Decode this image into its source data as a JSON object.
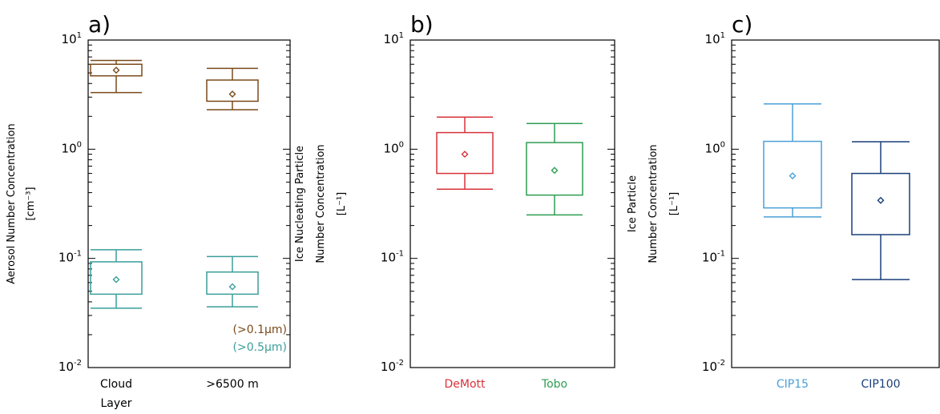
{
  "chart_data": [
    {
      "type": "box",
      "panel_label": "a)",
      "ylabel_lines": [
        "Aerosol Number Concentration",
        "[cm⁻³]"
      ],
      "yscale": "log",
      "ylim": [
        0.01,
        10
      ],
      "yticks": [
        {
          "value": 0.01,
          "base": "10",
          "exp": "-2"
        },
        {
          "value": 0.1,
          "base": "10",
          "exp": "-1"
        },
        {
          "value": 1,
          "base": "10",
          "exp": "0"
        },
        {
          "value": 10,
          "base": "10",
          "exp": "1"
        }
      ],
      "categories": [
        {
          "lines": [
            "Cloud",
            "Layer"
          ],
          "color": "#000000"
        },
        {
          "lines": [
            ">6500 m"
          ],
          "color": "#000000"
        }
      ],
      "series": [
        {
          "color": "#7a4a1a",
          "boxes": [
            {
              "whisker_low": 3.3,
              "q1": 4.7,
              "q3": 6.0,
              "whisker_high": 6.5,
              "mean": 5.3
            },
            {
              "whisker_low": 2.3,
              "q1": 2.75,
              "q3": 4.3,
              "whisker_high": 5.5,
              "mean": 3.2
            }
          ]
        },
        {
          "color": "#3a9e9a",
          "boxes": [
            {
              "whisker_low": 0.035,
              "q1": 0.047,
              "q3": 0.093,
              "whisker_high": 0.12,
              "mean": 0.064
            },
            {
              "whisker_low": 0.036,
              "q1": 0.047,
              "q3": 0.075,
              "whisker_high": 0.104,
              "mean": 0.055
            }
          ]
        }
      ],
      "annotations": [
        {
          "text": "(>0.1µm)",
          "color": "#7a4a1a"
        },
        {
          "text": "(>0.5µm)",
          "color": "#3a9e9a"
        }
      ]
    },
    {
      "type": "box",
      "panel_label": "b)",
      "ylabel_lines": [
        "Ice Nucleating Particle",
        "Number Concentration",
        "[L⁻¹]"
      ],
      "yscale": "log",
      "ylim": [
        0.01,
        10
      ],
      "yticks": [
        {
          "value": 0.01,
          "base": "10",
          "exp": "-2"
        },
        {
          "value": 0.1,
          "base": "10",
          "exp": "-1"
        },
        {
          "value": 1,
          "base": "10",
          "exp": "0"
        },
        {
          "value": 10,
          "base": "10",
          "exp": "1"
        }
      ],
      "categories": [
        {
          "lines": [
            "DeMott"
          ],
          "color": "#d6333a"
        },
        {
          "lines": [
            "Tobo"
          ],
          "color": "#2e9e52"
        }
      ],
      "series": [
        {
          "color": "#d6333a",
          "boxes": [
            {
              "whisker_low": 0.43,
              "q1": 0.6,
              "q3": 1.42,
              "whisker_high": 1.97,
              "mean": 0.9
            }
          ]
        },
        {
          "color": "#2e9e52",
          "boxes": [
            {
              "whisker_low": 0.25,
              "q1": 0.38,
              "q3": 1.15,
              "whisker_high": 1.72,
              "mean": 0.64
            }
          ]
        }
      ],
      "annotations": []
    },
    {
      "type": "box",
      "panel_label": "c)",
      "ylabel_lines": [
        "Ice Particle",
        "Number Concentration",
        "[L⁻¹]"
      ],
      "yscale": "log",
      "ylim": [
        0.01,
        10
      ],
      "yticks": [
        {
          "value": 0.01,
          "base": "10",
          "exp": "-2"
        },
        {
          "value": 0.1,
          "base": "10",
          "exp": "-1"
        },
        {
          "value": 1,
          "base": "10",
          "exp": "0"
        },
        {
          "value": 10,
          "base": "10",
          "exp": "1"
        }
      ],
      "categories": [
        {
          "lines": [
            "CIP15"
          ],
          "color": "#4aa0d8"
        },
        {
          "lines": [
            "CIP100"
          ],
          "color": "#1a3f7a"
        }
      ],
      "series": [
        {
          "color": "#4aa0d8",
          "boxes": [
            {
              "whisker_low": 0.24,
              "q1": 0.29,
              "q3": 1.18,
              "whisker_high": 2.6,
              "mean": 0.57
            }
          ]
        },
        {
          "color": "#1a3f7a",
          "boxes": [
            {
              "whisker_low": 0.064,
              "q1": 0.165,
              "q3": 0.6,
              "whisker_high": 1.17,
              "mean": 0.34
            }
          ]
        }
      ],
      "annotations": []
    }
  ]
}
